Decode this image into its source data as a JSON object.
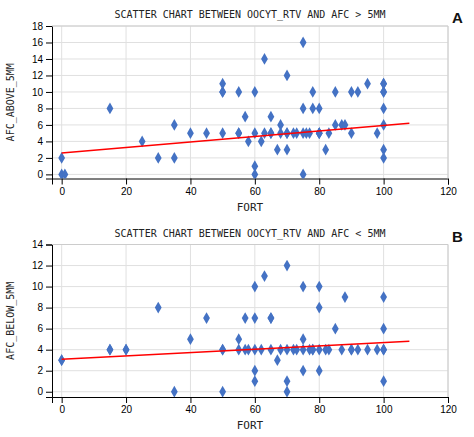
{
  "chart_data": [
    {
      "type": "scatter",
      "title": "SCATTER CHART BETWEEN OOCYT_RTV AND AFC > 5MM",
      "xlabel": "FORT",
      "ylabel": "AFC_ABOVE_5MM",
      "annotations": [
        "A"
      ],
      "xlim": [
        -3,
        120
      ],
      "xticks": [
        0,
        20,
        40,
        60,
        80,
        100,
        120
      ],
      "ylim": [
        -0.5,
        18
      ],
      "yticks": [
        0,
        2,
        4,
        6,
        8,
        10,
        12,
        14,
        16,
        18
      ],
      "grid": true,
      "series": [
        {
          "type": "scatter",
          "color": "#4472C4",
          "marker": "diamond",
          "x": [
            0,
            0,
            1,
            15,
            25,
            30,
            35,
            35,
            40,
            45,
            50,
            50,
            50,
            50,
            55,
            55,
            55,
            57,
            58,
            60,
            60,
            60,
            60,
            62,
            63,
            63,
            65,
            65,
            65,
            67,
            68,
            68,
            70,
            70,
            70,
            70,
            72,
            73,
            75,
            75,
            75,
            75,
            76,
            77,
            78,
            78,
            80,
            80,
            80,
            80,
            82,
            83,
            85,
            85,
            87,
            88,
            90,
            90,
            92,
            95,
            98,
            100,
            100,
            100,
            100,
            100,
            100,
            100,
            100
          ],
          "values": [
            0,
            2,
            0,
            8,
            4,
            2,
            2,
            6,
            5,
            5,
            5,
            10,
            10,
            11,
            5,
            5,
            10,
            7,
            4,
            0,
            1,
            5,
            10,
            4,
            5,
            14,
            5,
            5,
            7,
            3,
            5,
            6,
            3,
            5,
            5,
            12,
            5,
            5,
            0,
            5,
            8,
            16,
            5,
            5,
            8,
            10,
            5,
            5,
            8,
            5,
            3,
            5,
            6,
            10,
            6,
            6,
            5,
            10,
            10,
            11,
            5,
            2,
            3,
            6,
            8,
            10,
            10,
            11,
            11
          ]
        },
        {
          "type": "line",
          "color": "#FF0000",
          "x": [
            0,
            108
          ],
          "values": [
            2.6,
            6.2
          ]
        }
      ]
    },
    {
      "type": "scatter",
      "title": "SCATTER CHART BETWEEN OOCYT_RTV AND AFC < 5MM",
      "xlabel": "FORT",
      "ylabel": "AFC_BELOW_5MM",
      "annotations": [
        "B"
      ],
      "xlim": [
        -3,
        120
      ],
      "xticks": [
        0,
        20,
        40,
        60,
        80,
        100,
        120
      ],
      "ylim": [
        -0.5,
        14
      ],
      "yticks": [
        0,
        2,
        4,
        6,
        8,
        10,
        12,
        14
      ],
      "grid": true,
      "series": [
        {
          "type": "scatter",
          "color": "#4472C4",
          "marker": "diamond",
          "x": [
            0,
            0,
            15,
            15,
            20,
            20,
            30,
            35,
            40,
            45,
            50,
            50,
            50,
            55,
            55,
            57,
            57,
            58,
            60,
            60,
            60,
            60,
            60,
            62,
            63,
            65,
            65,
            65,
            67,
            68,
            70,
            70,
            70,
            70,
            72,
            73,
            75,
            75,
            75,
            75,
            77,
            78,
            78,
            80,
            80,
            80,
            80,
            82,
            83,
            85,
            87,
            88,
            90,
            90,
            92,
            95,
            98,
            100,
            100,
            100,
            100,
            100
          ],
          "values": [
            3,
            3,
            4,
            4,
            4,
            4,
            8,
            0,
            5,
            7,
            0,
            4,
            4,
            4,
            5,
            4,
            7,
            4,
            1,
            2,
            4,
            7,
            10,
            4,
            11,
            4,
            7,
            7,
            3,
            4,
            0,
            1,
            4,
            12,
            4,
            4,
            2,
            4,
            5,
            10,
            4,
            4,
            4,
            2,
            4,
            8,
            10,
            4,
            4,
            6,
            4,
            9,
            4,
            4,
            4,
            4,
            4,
            1,
            4,
            6,
            9,
            4
          ]
        },
        {
          "type": "line",
          "color": "#FF0000",
          "x": [
            0,
            108
          ],
          "values": [
            3.1,
            4.8
          ]
        }
      ]
    }
  ]
}
